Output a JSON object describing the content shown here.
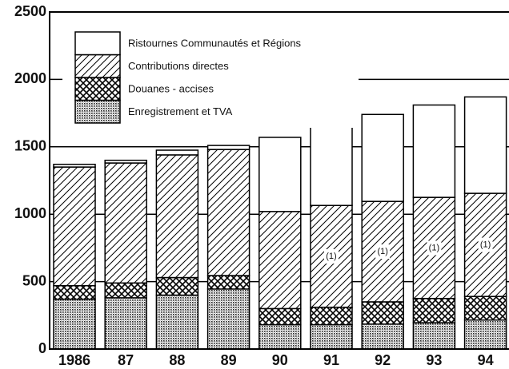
{
  "chart_data": {
    "type": "stacked_bar",
    "categories": [
      "1986",
      "87",
      "88",
      "89",
      "90",
      "91",
      "92",
      "93",
      "94"
    ],
    "series": [
      {
        "name": "Enregistrement et TVA",
        "color": "#000000",
        "pattern": "dots",
        "values": [
          370,
          380,
          400,
          445,
          180,
          180,
          185,
          195,
          215
        ]
      },
      {
        "name": "Douanes - accises",
        "color": "#000000",
        "pattern": "crosshatch",
        "values": [
          100,
          110,
          130,
          100,
          120,
          130,
          165,
          180,
          175
        ]
      },
      {
        "name": "Contributions directes",
        "color": "#000000",
        "pattern": "hatch",
        "values": [
          880,
          890,
          910,
          935,
          720,
          755,
          745,
          750,
          765
        ]
      },
      {
        "name": "Ristournes Communautés et Régions",
        "color": "#000000",
        "pattern": "none",
        "values": [
          20,
          20,
          35,
          30,
          550,
          610,
          645,
          685,
          715
        ]
      }
    ],
    "annotations": [
      {
        "text": "(1)",
        "category": "91"
      },
      {
        "text": "(1)",
        "category": "92"
      },
      {
        "text": "(1)",
        "category": "93"
      },
      {
        "text": "(1)",
        "category": "94"
      }
    ],
    "ylim": [
      0,
      2500
    ],
    "yticks": [
      0,
      500,
      1000,
      1500,
      2000,
      2500
    ],
    "grid": true,
    "legend": "upper left"
  }
}
